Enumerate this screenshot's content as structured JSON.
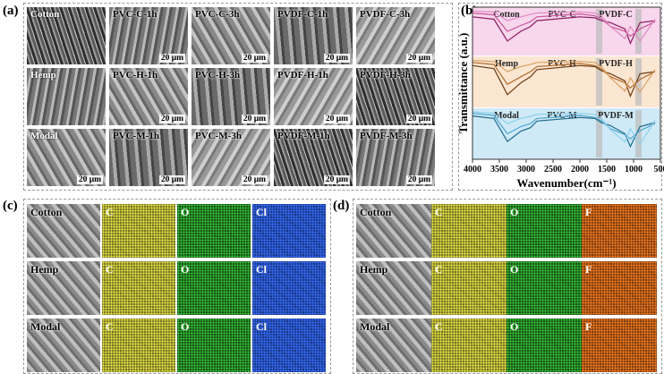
{
  "panels": {
    "a": {
      "label": "(a)",
      "scale_bar": "20 μm",
      "rows": [
        {
          "name": "Cotton",
          "cells": [
            "PVC-C-1h",
            "PVC-C-3h",
            "PVDF-C-1h",
            "PVDF-C-3h"
          ]
        },
        {
          "name": "Hemp",
          "cells": [
            "PVC-H-1h",
            "PVC-H-3h",
            "PVDF-H-1h",
            "PVDF-H-3h"
          ]
        },
        {
          "name": "Modal",
          "cells": [
            "PVC-M-1h",
            "PVC-M-3h",
            "PVDF-M-1h",
            "PVDF-M-3h"
          ]
        }
      ]
    },
    "b": {
      "label": "(b)",
      "type": "line",
      "y_label": "Transmittance (a.u.)",
      "x_label": "Wavenumber(cm⁻¹)",
      "xlim": [
        4000,
        500
      ],
      "xticks": [
        4000,
        3500,
        3000,
        2500,
        2000,
        1500,
        1000,
        500
      ],
      "x": [
        4000,
        3600,
        3350,
        3100,
        2920,
        2800,
        2000,
        1720,
        1600,
        1430,
        1160,
        1060,
        880,
        600
      ],
      "groups": [
        {
          "background": "#f8d6ec",
          "series": [
            {
              "name": "Cotton",
              "color": "#8b1a5e",
              "values": [
                0.8,
                0.75,
                0.3,
                0.5,
                0.6,
                0.72,
                0.8,
                0.78,
                0.72,
                0.68,
                0.55,
                0.25,
                0.68,
                0.72
              ]
            },
            {
              "name": "PVC-C",
              "color": "#c8559a",
              "values": [
                0.88,
                0.84,
                0.5,
                0.62,
                0.7,
                0.8,
                0.86,
                0.82,
                0.76,
                0.6,
                0.5,
                0.4,
                0.55,
                0.7
              ]
            },
            {
              "name": "PVDF-C",
              "color": "#e08cc0",
              "values": [
                0.92,
                0.9,
                0.72,
                0.8,
                0.85,
                0.88,
                0.9,
                0.88,
                0.82,
                0.6,
                0.35,
                0.6,
                0.3,
                0.75
              ]
            }
          ]
        },
        {
          "background": "#fbe6d2",
          "series": [
            {
              "name": "Hemp",
              "color": "#6b3a10",
              "values": [
                0.82,
                0.76,
                0.25,
                0.48,
                0.6,
                0.74,
                0.82,
                0.8,
                0.72,
                0.66,
                0.52,
                0.22,
                0.66,
                0.7
              ]
            },
            {
              "name": "PVC-H",
              "color": "#b06a2a",
              "values": [
                0.88,
                0.84,
                0.45,
                0.6,
                0.7,
                0.8,
                0.86,
                0.82,
                0.75,
                0.6,
                0.48,
                0.38,
                0.55,
                0.7
              ]
            },
            {
              "name": "PVDF-H",
              "color": "#d9a060",
              "values": [
                0.92,
                0.9,
                0.7,
                0.8,
                0.84,
                0.88,
                0.9,
                0.88,
                0.8,
                0.58,
                0.32,
                0.58,
                0.3,
                0.74
              ]
            }
          ]
        },
        {
          "background": "#cfe9f7",
          "series": [
            {
              "name": "Modal",
              "color": "#1d6a8a",
              "values": [
                0.85,
                0.8,
                0.35,
                0.55,
                0.62,
                0.75,
                0.82,
                0.8,
                0.72,
                0.66,
                0.5,
                0.25,
                0.64,
                0.72
              ]
            },
            {
              "name": "PVC-M",
              "color": "#4ea5cc",
              "values": [
                0.9,
                0.86,
                0.5,
                0.64,
                0.7,
                0.8,
                0.86,
                0.82,
                0.75,
                0.6,
                0.48,
                0.4,
                0.56,
                0.7
              ]
            },
            {
              "name": "PVDF-M",
              "color": "#8dd0ec",
              "values": [
                0.93,
                0.9,
                0.7,
                0.8,
                0.84,
                0.88,
                0.9,
                0.88,
                0.8,
                0.58,
                0.34,
                0.6,
                0.3,
                0.76
              ]
            }
          ]
        }
      ]
    },
    "c": {
      "label": "(c)",
      "rows": [
        "Cotton",
        "Hemp",
        "Modal"
      ],
      "elements": [
        "C",
        "O",
        "Cl"
      ]
    },
    "d": {
      "label": "(d)",
      "rows": [
        "Cotton",
        "Hemp",
        "Modal"
      ],
      "elements": [
        "C",
        "O",
        "F"
      ]
    }
  }
}
